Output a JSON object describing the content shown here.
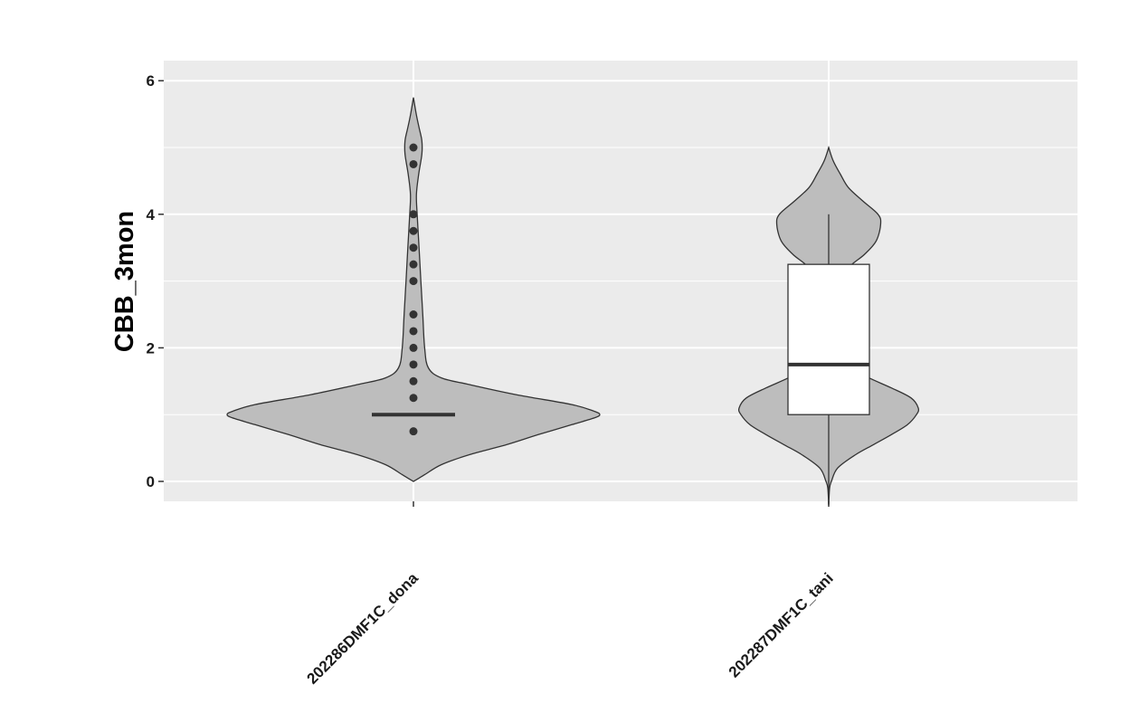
{
  "chart_data": {
    "type": "violin",
    "title": "",
    "xlabel": "",
    "ylabel": "CBB_3mon",
    "ylim": [
      -0.3,
      6.3
    ],
    "y_ticks": [
      0,
      2,
      4,
      6
    ],
    "categories": [
      "202286DMF1C_dona",
      "202287DMF1C_tani"
    ],
    "grid": true,
    "legend": "none",
    "colors": {
      "panel": "#ebebeb",
      "grid": "#ffffff",
      "violin_fill": "#bdbdbd",
      "violin_stroke": "#333333",
      "box_fill": "#ffffff",
      "points": "#333333"
    },
    "groups": [
      {
        "name": "202286DMF1C_dona",
        "violin_range": [
          0,
          5.75
        ],
        "violin_width_profile": [
          [
            0.0,
            0.0
          ],
          [
            0.1,
            0.06
          ],
          [
            0.25,
            0.15
          ],
          [
            0.4,
            0.3
          ],
          [
            0.55,
            0.5
          ],
          [
            0.7,
            0.67
          ],
          [
            0.85,
            0.85
          ],
          [
            0.95,
            0.97
          ],
          [
            1.0,
            1.0
          ],
          [
            1.05,
            0.97
          ],
          [
            1.15,
            0.85
          ],
          [
            1.3,
            0.55
          ],
          [
            1.45,
            0.3
          ],
          [
            1.55,
            0.15
          ],
          [
            1.7,
            0.08
          ],
          [
            2.0,
            0.06
          ],
          [
            2.5,
            0.05
          ],
          [
            3.0,
            0.04
          ],
          [
            3.5,
            0.03
          ],
          [
            4.0,
            0.02
          ],
          [
            4.3,
            0.016
          ],
          [
            4.6,
            0.028
          ],
          [
            4.9,
            0.045
          ],
          [
            5.1,
            0.045
          ],
          [
            5.3,
            0.03
          ],
          [
            5.5,
            0.015
          ],
          [
            5.75,
            0.0
          ]
        ],
        "median": 1.0,
        "points": [
          0.75,
          1.25,
          1.5,
          1.75,
          2.0,
          2.25,
          2.5,
          3.0,
          3.25,
          3.5,
          3.75,
          4.0,
          4.75,
          5.0
        ]
      },
      {
        "name": "202287DMF1C_tani",
        "violin_range": [
          -0.35,
          5.0
        ],
        "violin_width_profile": [
          [
            -0.35,
            0.0
          ],
          [
            -0.1,
            0.01
          ],
          [
            0.0,
            0.03
          ],
          [
            0.2,
            0.1
          ],
          [
            0.4,
            0.3
          ],
          [
            0.55,
            0.5
          ],
          [
            0.7,
            0.7
          ],
          [
            0.85,
            0.88
          ],
          [
            1.0,
            0.98
          ],
          [
            1.1,
            1.0
          ],
          [
            1.25,
            0.92
          ],
          [
            1.4,
            0.7
          ],
          [
            1.55,
            0.45
          ],
          [
            1.7,
            0.25
          ],
          [
            1.85,
            0.15
          ],
          [
            2.0,
            0.14
          ],
          [
            2.5,
            0.12
          ],
          [
            3.0,
            0.15
          ],
          [
            3.2,
            0.22
          ],
          [
            3.4,
            0.4
          ],
          [
            3.6,
            0.53
          ],
          [
            3.85,
            0.58
          ],
          [
            4.0,
            0.55
          ],
          [
            4.2,
            0.38
          ],
          [
            4.4,
            0.22
          ],
          [
            4.6,
            0.13
          ],
          [
            4.8,
            0.05
          ],
          [
            5.0,
            0.0
          ]
        ],
        "box": {
          "q1": 1.0,
          "median": 1.75,
          "q3": 3.25,
          "whisker_low": -0.35,
          "whisker_high": 4.0
        }
      }
    ]
  }
}
